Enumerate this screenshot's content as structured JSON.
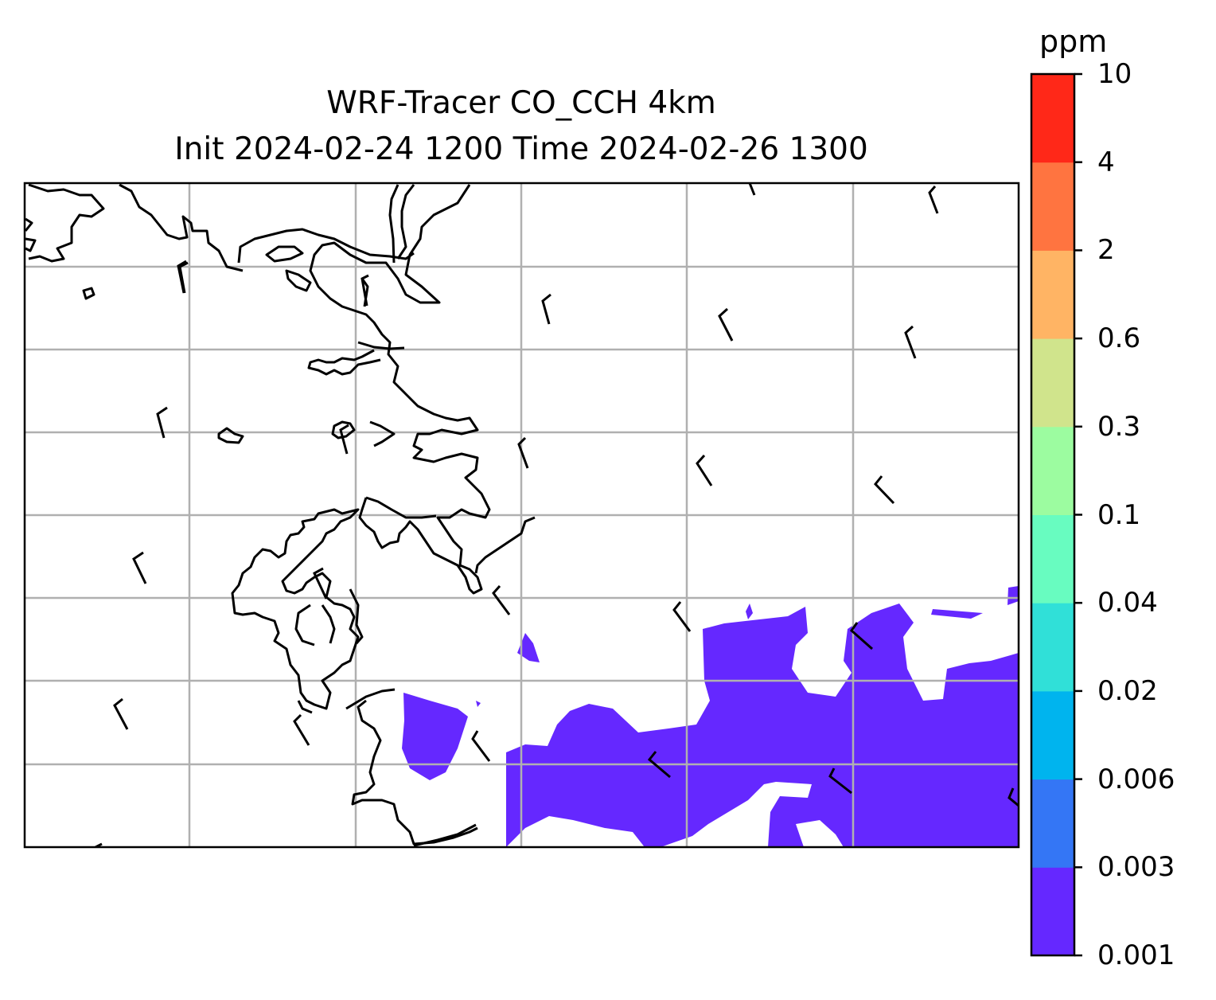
{
  "title": {
    "line1": "WRF-Tracer CO_CCH 4km",
    "line2": "Init 2024-02-24 1200 Time 2024-02-26 1300"
  },
  "colorbar": {
    "unit": "ppm",
    "levels": [
      "0.001",
      "0.003",
      "0.006",
      "0.02",
      "0.04",
      "0.1",
      "0.3",
      "0.6",
      "2",
      "4",
      "10"
    ],
    "colors": [
      "#6528ff",
      "#3476f5",
      "#00b4ee",
      "#30e0d8",
      "#68fcc0",
      "#9cfca0",
      "#d0e48c",
      "#ffb464",
      "#ff7440",
      "#ff2818"
    ]
  },
  "map": {
    "gridlines": true,
    "fill_color": "#6528ff",
    "coast_color": "#000000",
    "grid_color": "#b0b0b0"
  }
}
